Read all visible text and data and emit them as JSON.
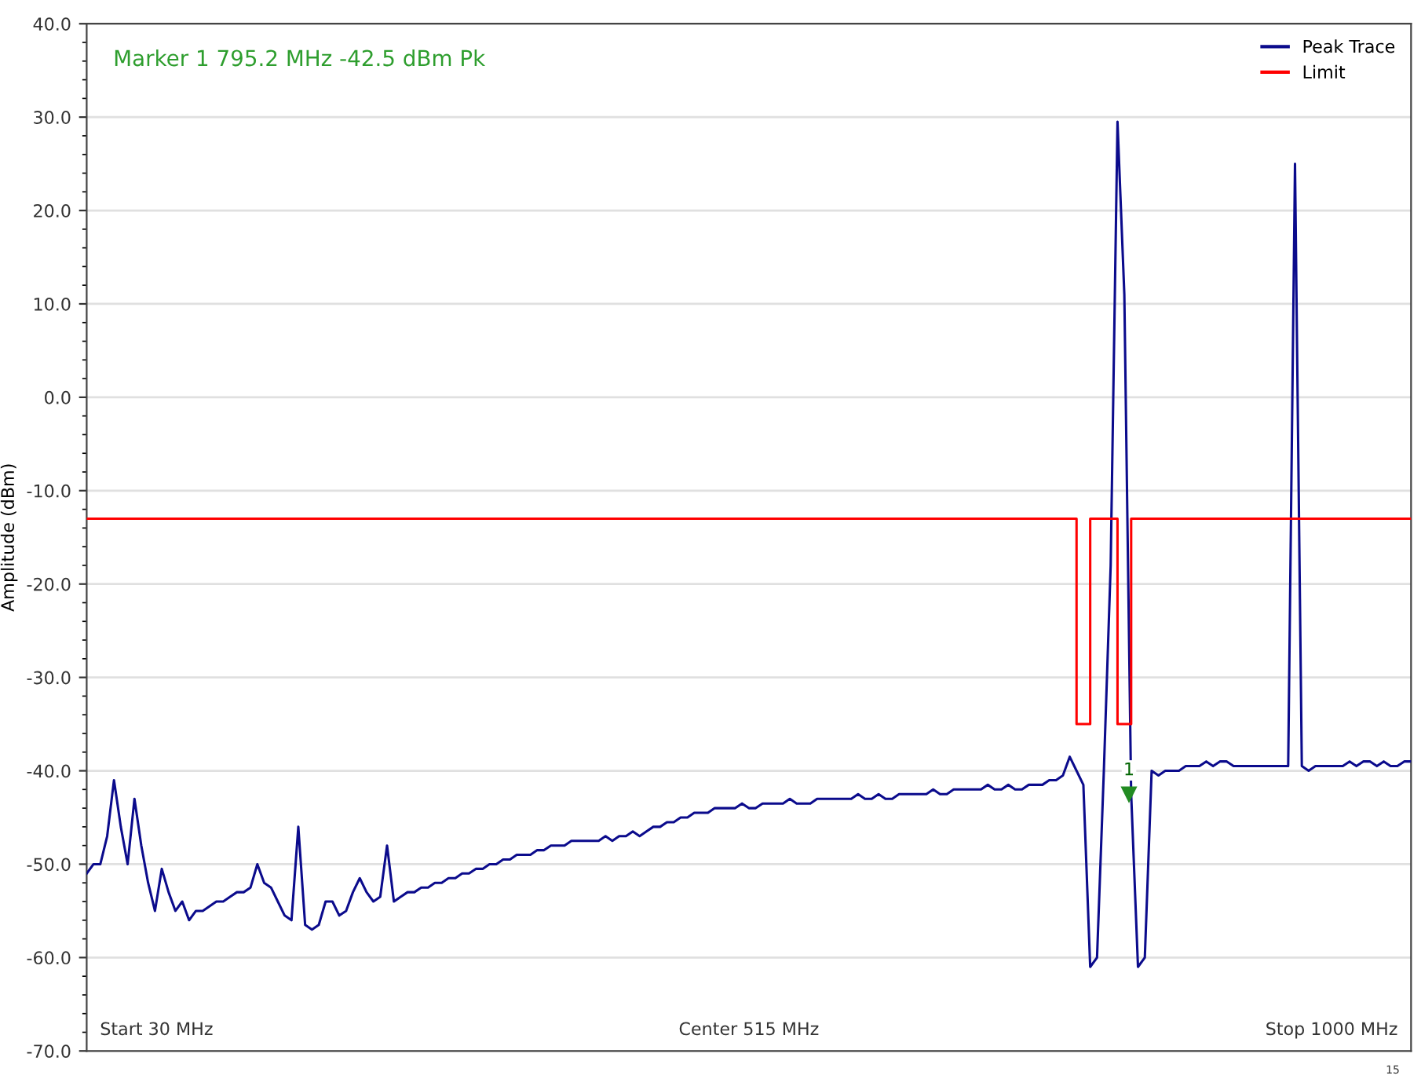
{
  "chart_data": {
    "type": "line",
    "ylabel": "Amplitude (dBm)",
    "categories": [
      null,
      null,
      null,
      null,
      null,
      null,
      null,
      null,
      null,
      null,
      null,
      null,
      null,
      null,
      null,
      null,
      null,
      null,
      null,
      null,
      null,
      null,
      null,
      null,
      null,
      null,
      null,
      null,
      null,
      null,
      null,
      null,
      null,
      null,
      null,
      null,
      null,
      null,
      null,
      null,
      null,
      null,
      null,
      null,
      null,
      null,
      null,
      null,
      null,
      null,
      null,
      null,
      null,
      null,
      null,
      null,
      null,
      null,
      null,
      null,
      null,
      null,
      null,
      null,
      null,
      null,
      null,
      null,
      null,
      null,
      null,
      null,
      null,
      null,
      null,
      null,
      null,
      null,
      null,
      null,
      null,
      null,
      null,
      null,
      null,
      null,
      null,
      null,
      null,
      null,
      null,
      null,
      null,
      null,
      null,
      null,
      null,
      null,
      null,
      null,
      null,
      null,
      null,
      null,
      null,
      null,
      null,
      null,
      null,
      null,
      null,
      null,
      null,
      null,
      null,
      null,
      null,
      null,
      null,
      null,
      null,
      null,
      null,
      null,
      null,
      null,
      null,
      null,
      null,
      null,
      null,
      null,
      null,
      null,
      null,
      null,
      null,
      null,
      null,
      null,
      null,
      null,
      null,
      null,
      null,
      null,
      null,
      null,
      null,
      null,
      null,
      null,
      null,
      null,
      null,
      null,
      null,
      null,
      null,
      null,
      null,
      null,
      null,
      null,
      null,
      null,
      null,
      null,
      null,
      null,
      null,
      null,
      null,
      null,
      null,
      null,
      null,
      null,
      null,
      null,
      null,
      null,
      null,
      null,
      null,
      null,
      null,
      null,
      null,
      null,
      null,
      null,
      null,
      null,
      null
    ],
    "ylim": [
      -70,
      40
    ],
    "yticks": [
      {
        "value": -70,
        "label": "-70.0"
      },
      {
        "value": -60,
        "label": "-60.0"
      },
      {
        "value": -50,
        "label": "-50.0"
      },
      {
        "value": -40,
        "label": "-40.0"
      },
      {
        "value": -30,
        "label": "-30.0"
      },
      {
        "value": -20,
        "label": "-20.0"
      },
      {
        "value": -10,
        "label": "-10.0"
      },
      {
        "value": 0,
        "label": "0.0"
      },
      {
        "value": 10,
        "label": "10.0"
      },
      {
        "value": 20,
        "label": "20.0"
      },
      {
        "value": 30,
        "label": "30.0"
      },
      {
        "value": 40,
        "label": "40.0"
      }
    ],
    "tick_labels": "y",
    "grid": "y",
    "legend": "top right",
    "marker": "none",
    "line_style": "solid",
    "series": [
      {
        "name": "Peak Trace",
        "color": "#0b0b8c",
        "values": [
          -51,
          -50,
          -50,
          -47,
          -41,
          -46,
          -50,
          -43,
          -48,
          -52,
          -55,
          -50.5,
          -53,
          -55,
          -54,
          -56,
          -55,
          -55,
          -54.5,
          -54,
          -54,
          -53.5,
          -53,
          -53,
          -52.5,
          -50,
          -52,
          -52.5,
          -54,
          -55.5,
          -56,
          -46,
          -56.5,
          -57,
          -56.5,
          -54,
          -54,
          -55.5,
          -55,
          -53,
          -51.5,
          -53,
          -54,
          -53.5,
          -48,
          -54,
          -53.5,
          -53,
          -53,
          -52.5,
          -52.5,
          -52,
          -52,
          -51.5,
          -51.5,
          -51,
          -51,
          -50.5,
          -50.5,
          -50,
          -50,
          -49.5,
          -49.5,
          -49,
          -49,
          -49,
          -48.5,
          -48.5,
          -48,
          -48,
          -48,
          -47.5,
          -47.5,
          -47.5,
          -47.5,
          -47.5,
          -47,
          -47.5,
          -47,
          -47,
          -46.5,
          -47,
          -46.5,
          -46,
          -46,
          -45.5,
          -45.5,
          -45,
          -45,
          -44.5,
          -44.5,
          -44.5,
          -44,
          -44,
          -44,
          -44,
          -43.5,
          -44,
          -44,
          -43.5,
          -43.5,
          -43.5,
          -43.5,
          -43,
          -43.5,
          -43.5,
          -43.5,
          -43,
          -43,
          -43,
          -43,
          -43,
          -43,
          -42.5,
          -43,
          -43,
          -42.5,
          -43,
          -43,
          -42.5,
          -42.5,
          -42.5,
          -42.5,
          -42.5,
          -42,
          -42.5,
          -42.5,
          -42,
          -42,
          -42,
          -42,
          -42,
          -41.5,
          -42,
          -42,
          -41.5,
          -42,
          -42,
          -41.5,
          -41.5,
          -41.5,
          -41,
          -41,
          -40.5,
          -38.5,
          -40,
          -41.5,
          -61,
          -60,
          -40,
          -18,
          29.5,
          11,
          -42.5,
          -61,
          -60,
          -40,
          -40.5,
          -40,
          -40,
          -40,
          -39.5,
          -39.5,
          -39.5,
          -39,
          -39.5,
          -39,
          -39,
          -39.5,
          -39.5,
          -39.5,
          -39.5,
          -39.5,
          -39.5,
          -39.5,
          -39.5,
          -39.5,
          25,
          -39.5,
          -40,
          -39.5,
          -39.5,
          -39.5,
          -39.5,
          -39.5,
          -39,
          -39.5,
          -39,
          -39,
          -39.5,
          -39,
          -39.5,
          -39.5,
          -39,
          -39
        ]
      },
      {
        "name": "Limit",
        "color": "#ff0000",
        "type": "step",
        "values": [
          -13,
          -13,
          -13,
          -13,
          -13,
          -13,
          -13,
          -13,
          -13,
          -13,
          -13,
          -13,
          -13,
          -13,
          -13,
          -13,
          -13,
          -13,
          -13,
          -13,
          -13,
          -13,
          -13,
          -13,
          -13,
          -13,
          -13,
          -13,
          -13,
          -13,
          -13,
          -13,
          -13,
          -13,
          -13,
          -13,
          -13,
          -13,
          -13,
          -13,
          -13,
          -13,
          -13,
          -13,
          -13,
          -13,
          -13,
          -13,
          -13,
          -13,
          -13,
          -13,
          -13,
          -13,
          -13,
          -13,
          -13,
          -13,
          -13,
          -13,
          -13,
          -13,
          -13,
          -13,
          -13,
          -13,
          -13,
          -13,
          -13,
          -13,
          -13,
          -13,
          -13,
          -13,
          -13,
          -13,
          -13,
          -13,
          -13,
          -13,
          -13,
          -13,
          -13,
          -13,
          -13,
          -13,
          -13,
          -13,
          -13,
          -13,
          -13,
          -13,
          -13,
          -13,
          -13,
          -13,
          -13,
          -13,
          -13,
          -13,
          -13,
          -13,
          -13,
          -13,
          -13,
          -13,
          -13,
          -13,
          -13,
          -13,
          -13,
          -13,
          -13,
          -13,
          -13,
          -13,
          -13,
          -13,
          -13,
          -13,
          -13,
          -13,
          -13,
          -13,
          -13,
          -13,
          -13,
          -13,
          -13,
          -13,
          -13,
          -13,
          -13,
          -13,
          -13,
          -13,
          -13,
          -13,
          -13,
          -13,
          -13,
          -13,
          -13,
          -13,
          -13,
          -35,
          -35,
          -13,
          -13,
          -13,
          -13,
          -35,
          -35,
          -13,
          -13,
          -13,
          -13,
          -13,
          -13,
          -13,
          -13,
          -13,
          -13,
          -13,
          -13,
          -13,
          -13,
          -13,
          -13,
          -13,
          -13,
          -13,
          -13,
          -13,
          -13,
          -13,
          -13,
          -13,
          -13,
          -13,
          -13,
          -13,
          -13,
          -13,
          -13,
          -13,
          -13,
          -13,
          -13,
          -13,
          -13,
          -13,
          -13,
          -13,
          -13
        ]
      }
    ],
    "annotations": [
      "Marker 1 795.2 MHz -42.5 dBm Pk",
      {
        "text": "1",
        "y": -42.5
      },
      "Start 30 MHz",
      "Center 515 MHz",
      "Stop 1000 MHz",
      "15"
    ]
  }
}
